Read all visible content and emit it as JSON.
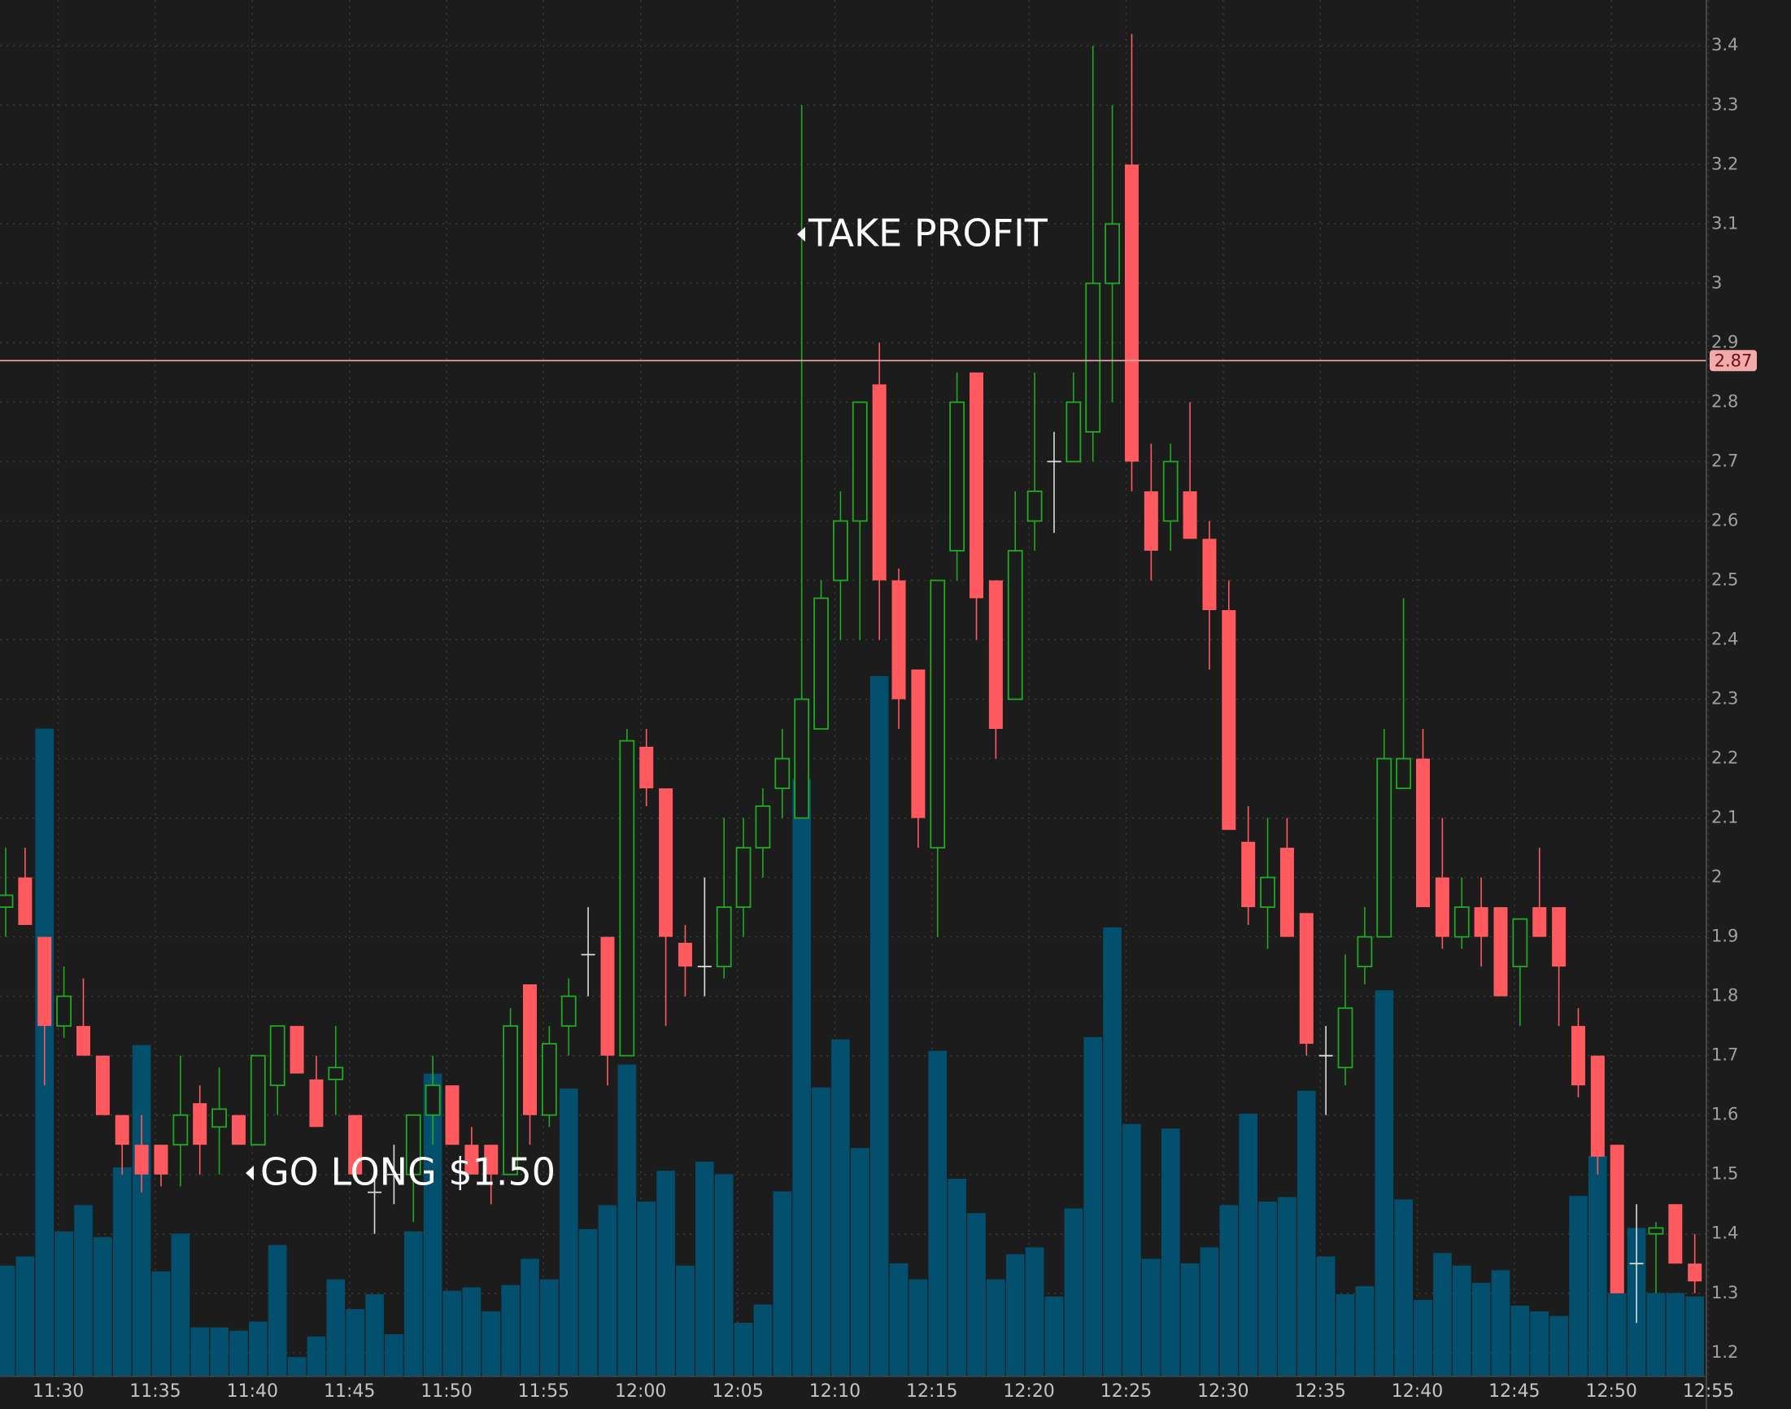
{
  "chart_data": {
    "type": "candlestick",
    "categories": [
      null,
      null,
      null,
      "11:30",
      null,
      null,
      null,
      null,
      "11:35",
      null,
      null,
      null,
      null,
      "11:40",
      null,
      null,
      null,
      null,
      "11:45",
      null,
      null,
      null,
      null,
      "11:50",
      null,
      null,
      null,
      null,
      "11:55",
      null,
      null,
      null,
      null,
      "12:00",
      null,
      null,
      null,
      null,
      "12:05",
      null,
      null,
      null,
      null,
      "12:10",
      null,
      null,
      null,
      null,
      "12:15",
      null,
      null,
      null,
      null,
      "12:20",
      null,
      null,
      null,
      null,
      "12:25",
      null,
      null,
      null,
      null,
      "12:30",
      null,
      null,
      null,
      null,
      "12:35",
      null,
      null,
      null,
      null,
      "12:40",
      null,
      null,
      null,
      null,
      "12:45",
      null,
      null,
      null,
      null,
      "12:50",
      null,
      null,
      null,
      null,
      "12:55"
    ],
    "open": [
      1.95,
      2.0,
      1.9,
      1.75,
      1.75,
      1.7,
      1.6,
      1.55,
      1.55,
      1.55,
      1.62,
      1.58,
      1.6,
      1.55,
      1.65,
      1.75,
      1.66,
      1.66,
      1.6,
      1.47,
      1.5,
      1.5,
      1.6,
      1.65,
      1.55,
      1.55,
      1.5,
      1.82,
      1.6,
      1.75,
      1.87,
      1.9,
      1.7,
      2.22,
      2.15,
      1.89,
      1.85,
      1.85,
      1.95,
      2.05,
      2.15,
      2.1,
      2.25,
      2.5,
      2.6,
      2.83,
      2.5,
      2.35,
      2.05,
      2.55,
      2.85,
      2.5,
      2.3,
      2.6,
      2.7,
      2.7,
      2.75,
      3.0,
      3.2,
      2.65,
      2.6,
      2.65,
      2.57,
      2.45,
      2.06,
      1.95,
      2.05,
      1.94,
      1.7,
      1.68,
      1.85,
      1.9,
      2.15,
      2.2,
      2.0,
      1.9,
      1.95,
      1.95,
      1.85,
      1.95,
      1.95,
      1.75,
      1.7,
      1.55,
      1.35,
      1.4,
      1.45,
      1.35,
      null
    ],
    "high": [
      2.05,
      2.05,
      1.9,
      1.85,
      1.83,
      1.7,
      1.6,
      1.6,
      1.55,
      1.7,
      1.65,
      1.68,
      1.6,
      1.7,
      1.75,
      1.75,
      1.7,
      1.75,
      1.6,
      1.5,
      1.55,
      1.6,
      1.7,
      1.65,
      1.58,
      1.55,
      1.78,
      1.82,
      1.75,
      1.83,
      1.95,
      1.9,
      2.25,
      2.25,
      2.15,
      1.92,
      2.0,
      2.1,
      2.1,
      2.15,
      2.25,
      3.3,
      2.5,
      2.65,
      2.8,
      2.9,
      2.52,
      2.35,
      2.5,
      2.85,
      2.85,
      2.5,
      2.65,
      2.85,
      2.75,
      2.85,
      3.4,
      3.3,
      3.42,
      2.73,
      2.73,
      2.8,
      2.6,
      2.5,
      2.12,
      2.1,
      2.1,
      1.94,
      1.75,
      1.87,
      1.95,
      2.25,
      2.47,
      2.25,
      2.1,
      2.0,
      2.0,
      1.95,
      1.93,
      2.05,
      1.95,
      1.78,
      1.7,
      1.55,
      1.45,
      1.42,
      1.45,
      1.4,
      null
    ],
    "low": [
      1.9,
      1.92,
      1.65,
      1.73,
      1.7,
      1.6,
      1.5,
      1.47,
      1.48,
      1.48,
      1.5,
      1.5,
      1.55,
      1.55,
      1.6,
      1.67,
      1.58,
      1.6,
      1.5,
      1.4,
      1.45,
      1.42,
      1.55,
      1.55,
      1.5,
      1.45,
      1.5,
      1.55,
      1.58,
      1.7,
      1.8,
      1.65,
      1.7,
      2.12,
      1.75,
      1.8,
      1.8,
      1.83,
      1.9,
      2.0,
      2.1,
      2.1,
      2.25,
      2.4,
      2.4,
      2.4,
      2.25,
      2.05,
      1.9,
      2.5,
      2.4,
      2.2,
      2.3,
      2.55,
      2.58,
      2.7,
      2.7,
      2.8,
      2.65,
      2.5,
      2.55,
      2.57,
      2.35,
      2.08,
      1.92,
      1.88,
      1.9,
      1.7,
      1.6,
      1.65,
      1.82,
      1.9,
      2.15,
      1.95,
      1.88,
      1.88,
      1.85,
      1.8,
      1.75,
      1.9,
      1.75,
      1.63,
      1.5,
      1.3,
      1.25,
      1.3,
      1.35,
      1.3,
      null
    ],
    "close": [
      1.97,
      1.92,
      1.75,
      1.8,
      1.7,
      1.6,
      1.55,
      1.5,
      1.5,
      1.6,
      1.55,
      1.61,
      1.55,
      1.7,
      1.75,
      1.67,
      1.58,
      1.68,
      1.5,
      1.47,
      1.5,
      1.6,
      1.65,
      1.55,
      1.5,
      1.5,
      1.75,
      1.6,
      1.72,
      1.8,
      1.87,
      1.7,
      2.23,
      2.15,
      1.9,
      1.85,
      1.85,
      1.95,
      2.05,
      2.12,
      2.2,
      2.3,
      2.47,
      2.6,
      2.8,
      2.5,
      2.3,
      2.1,
      2.5,
      2.8,
      2.47,
      2.25,
      2.55,
      2.65,
      2.7,
      2.8,
      3.0,
      3.1,
      2.7,
      2.55,
      2.7,
      2.57,
      2.45,
      2.08,
      1.95,
      2.0,
      1.9,
      1.72,
      1.7,
      1.78,
      1.9,
      2.2,
      2.2,
      1.95,
      1.9,
      1.95,
      1.9,
      1.8,
      1.93,
      1.9,
      1.85,
      1.65,
      1.53,
      1.3,
      1.35,
      1.41,
      1.35,
      1.32,
      null
    ],
    "volume": [
      97,
      105,
      567,
      127,
      150,
      122,
      183,
      290,
      92,
      125,
      43,
      43,
      40,
      48,
      115,
      17,
      35,
      85,
      59,
      72,
      37,
      127,
      265,
      75,
      78,
      57,
      80,
      103,
      85,
      252,
      129,
      150,
      273,
      153,
      180,
      97,
      188,
      177,
      47,
      63,
      162,
      523,
      253,
      295,
      200,
      613,
      99,
      85,
      285,
      173,
      143,
      85,
      107,
      113,
      70,
      147,
      297,
      393,
      221,
      103,
      217,
      99,
      113,
      150,
      230,
      153,
      157,
      250,
      105,
      72,
      79,
      338,
      155,
      67,
      108,
      97,
      82,
      93,
      62,
      57,
      53,
      158,
      193,
      73,
      130,
      73,
      73,
      70,
      null
    ],
    "colors": {
      "up": "#1faa1f",
      "down": "#ff5a60",
      "flat": "#dcdcdc",
      "volume": "#024f6e",
      "price_line": "#f2aaaa"
    },
    "ylim": [
      1.16,
      3.477
    ],
    "yticks": [
      1.2,
      1.3,
      1.4,
      1.5,
      1.6,
      1.7,
      1.8,
      1.9,
      2,
      2.1,
      2.2,
      2.3,
      2.4,
      2.5,
      2.6,
      2.7,
      2.8,
      2.9,
      3,
      3.1,
      3.2,
      3.3,
      3.4
    ],
    "grid": true,
    "price_line": 2.87,
    "annotations": [
      "TAKE PROFIT",
      "GO LONG $1.50"
    ]
  }
}
